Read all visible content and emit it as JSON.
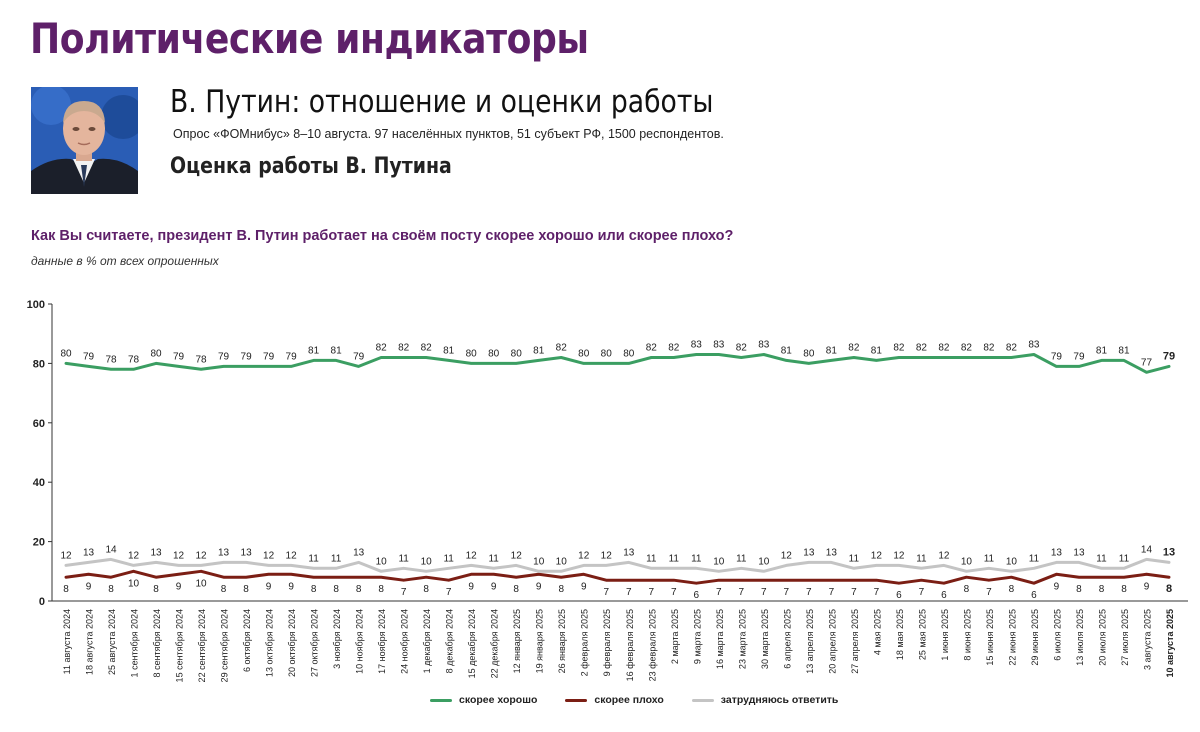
{
  "header": {
    "title": "Политические индикаторы",
    "subtitle": "В. Путин: отношение и оценки работы",
    "poll_info": "Опрос «ФОМнибус» 8–10 августа. 97 населённых пунктов, 51 субъект РФ, 1500 респондентов.",
    "section_title": "Оценка работы В. Путина"
  },
  "question": "Как Вы считаете, президент В. Путин работает на своём посту скорее хорошо или скорее плохо?",
  "note": "данные в % от всех опрошенных",
  "colors": {
    "title": "#5e2069",
    "good": "#3b9e62",
    "bad": "#7b1e14",
    "unsure": "#c4c4c4",
    "axis": "#333333"
  },
  "chart_data": {
    "type": "line",
    "title": "Оценка работы В. Путина",
    "ylim": [
      0,
      100
    ],
    "yticks": [
      0,
      20,
      40,
      60,
      80,
      100
    ],
    "categories": [
      "11 августа 2024",
      "18 августа 2024",
      "25 августа 2024",
      "1 сентября 2024",
      "8 сентября 2024",
      "15 сентября 2024",
      "22 сентября 2024",
      "29 сентября 2024",
      "6 октября 2024",
      "13 октября 2024",
      "20 октября 2024",
      "27 октября 2024",
      "3 ноября 2024",
      "10 ноября 2024",
      "17 ноября 2024",
      "24 ноября 2024",
      "1 декабря 2024",
      "8 декабря 2024",
      "15 декабря 2024",
      "22 декабря 2024",
      "12 января 2025",
      "19 января 2025",
      "26 января 2025",
      "2 февраля 2025",
      "9 февраля 2025",
      "16 февраля 2025",
      "23 февраля 2025",
      "2 марта 2025",
      "9 марта 2025",
      "16 марта 2025",
      "23 марта 2025",
      "30 марта 2025",
      "6 апреля 2025",
      "13 апреля 2025",
      "20 апреля 2025",
      "27 апреля 2025",
      "4 мая 2025",
      "18 мая 2025",
      "25 мая 2025",
      "1 июня 2025",
      "8 июня 2025",
      "15 июня 2025",
      "22 июня 2025",
      "29 июня 2025",
      "6 июля 2025",
      "13 июля 2025",
      "20 июля 2025",
      "27 июля 2025",
      "3 августа 2025",
      "10 августа 2025"
    ],
    "series": [
      {
        "name": "скорее хорошо",
        "color": "#3b9e62",
        "label_position": "above",
        "values": [
          80,
          79,
          78,
          78,
          80,
          79,
          78,
          79,
          79,
          79,
          79,
          81,
          81,
          79,
          82,
          82,
          82,
          81,
          80,
          80,
          80,
          81,
          82,
          80,
          80,
          80,
          82,
          82,
          83,
          83,
          82,
          83,
          81,
          80,
          81,
          82,
          81,
          82,
          82,
          82,
          82,
          82,
          82,
          83,
          79,
          79,
          81,
          81,
          77,
          79
        ]
      },
      {
        "name": "скорее плохо",
        "color": "#7b1e14",
        "label_position": "below",
        "values": [
          8,
          9,
          8,
          10,
          8,
          9,
          10,
          8,
          8,
          9,
          9,
          8,
          8,
          8,
          8,
          7,
          8,
          7,
          9,
          9,
          8,
          9,
          8,
          9,
          7,
          7,
          7,
          7,
          6,
          7,
          7,
          7,
          7,
          7,
          7,
          7,
          7,
          6,
          7,
          6,
          8,
          7,
          8,
          6,
          9,
          8,
          8,
          8,
          9,
          8
        ]
      },
      {
        "name": "затрудняюсь ответить",
        "color": "#c4c4c4",
        "label_position": "above",
        "values": [
          12,
          13,
          14,
          12,
          13,
          12,
          12,
          13,
          13,
          12,
          12,
          11,
          11,
          13,
          10,
          11,
          10,
          11,
          12,
          11,
          12,
          10,
          10,
          12,
          12,
          13,
          11,
          11,
          11,
          10,
          11,
          10,
          12,
          13,
          13,
          11,
          12,
          12,
          11,
          12,
          10,
          11,
          10,
          11,
          13,
          13,
          11,
          11,
          14,
          13
        ]
      }
    ],
    "legend": [
      "скорее хорошо",
      "скорее плохо",
      "затрудняюсь ответить"
    ],
    "legend_position": "bottom-center",
    "grid": false
  }
}
